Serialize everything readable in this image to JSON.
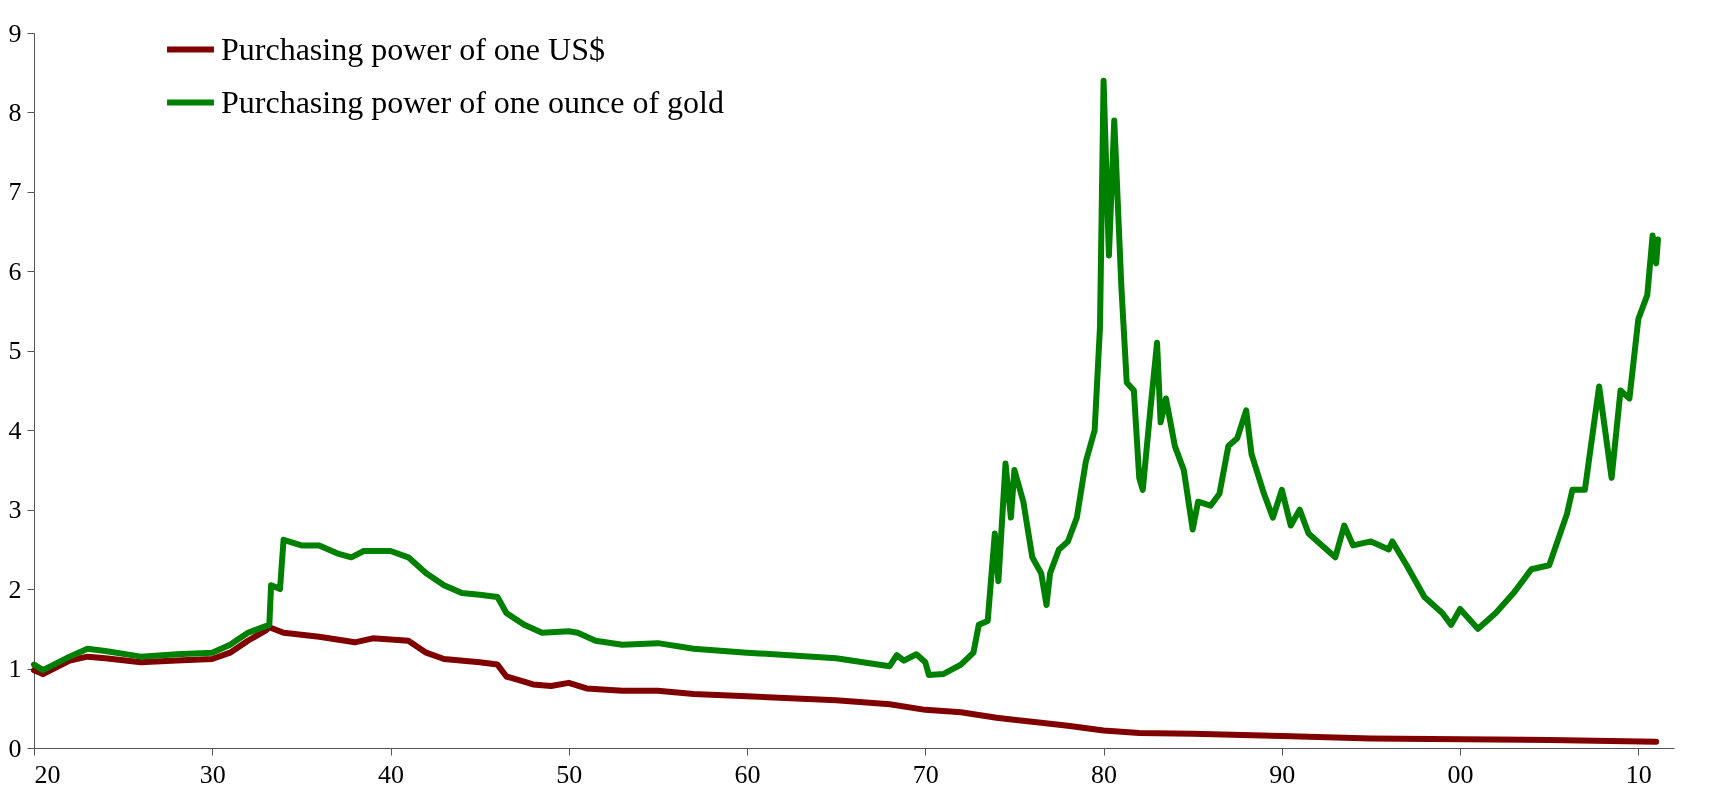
{
  "chart_data": {
    "type": "line",
    "legend": "top left",
    "grid": false,
    "marker": "none",
    "line_style": "solid",
    "xlim": [
      1920,
      2012
    ],
    "xticks": [
      {
        "value": 1920,
        "label": "20"
      },
      {
        "value": 1930,
        "label": "30"
      },
      {
        "value": 1940,
        "label": "40"
      },
      {
        "value": 1950,
        "label": "50"
      },
      {
        "value": 1960,
        "label": "60"
      },
      {
        "value": 1970,
        "label": "70"
      },
      {
        "value": 1980,
        "label": "80"
      },
      {
        "value": 1990,
        "label": "90"
      },
      {
        "value": 2000,
        "label": "00"
      },
      {
        "value": 2010,
        "label": "10"
      }
    ],
    "ylim": [
      0,
      9
    ],
    "yticks": [
      0,
      1,
      2,
      3,
      4,
      5,
      6,
      7,
      8,
      9
    ],
    "series": [
      {
        "name": "Purchasing power of one US$",
        "color": "#800000",
        "x": [
          1920,
          1920.5,
          1922,
          1923,
          1924,
          1926,
          1928,
          1930,
          1931,
          1932,
          1933,
          1933.2,
          1934,
          1936,
          1938,
          1939,
          1941,
          1942,
          1943,
          1945,
          1946,
          1946.5,
          1948,
          1949,
          1950,
          1951,
          1953,
          1955,
          1957,
          1960,
          1965,
          1968,
          1970,
          1972,
          1974,
          1976,
          1978,
          1980,
          1982,
          1985,
          1990,
          1995,
          2000,
          2005,
          2011
        ],
        "values": [
          0.98,
          0.93,
          1.1,
          1.15,
          1.13,
          1.08,
          1.1,
          1.12,
          1.2,
          1.35,
          1.48,
          1.52,
          1.45,
          1.4,
          1.33,
          1.38,
          1.35,
          1.2,
          1.12,
          1.08,
          1.05,
          0.9,
          0.8,
          0.78,
          0.82,
          0.75,
          0.72,
          0.72,
          0.68,
          0.65,
          0.6,
          0.55,
          0.48,
          0.45,
          0.38,
          0.33,
          0.28,
          0.22,
          0.19,
          0.18,
          0.15,
          0.12,
          0.11,
          0.1,
          0.08
        ]
      },
      {
        "name": "Purchasing power of one ounce of gold",
        "color": "#008000",
        "x": [
          1920,
          1920.5,
          1922,
          1923,
          1924,
          1926,
          1928,
          1930,
          1931,
          1932,
          1933.2,
          1933.3,
          1933.8,
          1934,
          1935,
          1936,
          1937,
          1937.8,
          1938.5,
          1940,
          1941,
          1942,
          1943,
          1944,
          1945,
          1946,
          1946.5,
          1947.5,
          1948.5,
          1950,
          1950.5,
          1951.5,
          1953,
          1955,
          1957,
          1960,
          1965,
          1968,
          1968.4,
          1968.8,
          1969.5,
          1970,
          1970.2,
          1971,
          1972,
          1972.7,
          1973,
          1973.5,
          1973.9,
          1974.1,
          1974.5,
          1974.8,
          1975,
          1975.5,
          1976,
          1976.5,
          1976.8,
          1977,
          1977.5,
          1978,
          1978.5,
          1979,
          1979.5,
          1979.8,
          1980,
          1980.3,
          1980.6,
          1981,
          1981.3,
          1981.7,
          1982,
          1982.2,
          1982.6,
          1983,
          1983.2,
          1983.5,
          1984,
          1984.5,
          1985,
          1985.3,
          1986,
          1986.5,
          1987,
          1987.5,
          1988,
          1988.3,
          1989,
          1989.5,
          1990,
          1990.5,
          1991,
          1991.5,
          1992,
          1993,
          1993.5,
          1994,
          1995,
          1996,
          1996.2,
          1997,
          1998,
          1999,
          1999.5,
          2000,
          2001,
          2001.5,
          2002,
          2003,
          2004,
          2005,
          2006,
          2006.3,
          2007,
          2007.8,
          2008.5,
          2009,
          2009.5,
          2010,
          2010.5,
          2010.8,
          2011,
          2011.1
        ],
        "values": [
          1.05,
          0.98,
          1.15,
          1.25,
          1.22,
          1.15,
          1.18,
          1.2,
          1.3,
          1.45,
          1.55,
          2.05,
          2.0,
          2.62,
          2.55,
          2.55,
          2.45,
          2.4,
          2.48,
          2.48,
          2.4,
          2.2,
          2.05,
          1.95,
          1.93,
          1.9,
          1.7,
          1.55,
          1.45,
          1.47,
          1.45,
          1.35,
          1.3,
          1.32,
          1.25,
          1.2,
          1.13,
          1.03,
          1.17,
          1.1,
          1.18,
          1.08,
          0.92,
          0.93,
          1.05,
          1.2,
          1.55,
          1.6,
          2.7,
          2.1,
          3.58,
          2.9,
          3.5,
          3.1,
          2.4,
          2.2,
          1.8,
          2.2,
          2.5,
          2.6,
          2.9,
          3.6,
          4.0,
          5.3,
          8.4,
          6.2,
          7.9,
          5.8,
          4.6,
          4.5,
          3.4,
          3.25,
          4.2,
          5.1,
          4.1,
          4.4,
          3.8,
          3.5,
          2.75,
          3.1,
          3.05,
          3.2,
          3.8,
          3.9,
          4.25,
          3.7,
          3.2,
          2.9,
          3.25,
          2.8,
          3.0,
          2.7,
          2.6,
          2.4,
          2.8,
          2.55,
          2.6,
          2.5,
          2.6,
          2.3,
          1.9,
          1.7,
          1.55,
          1.75,
          1.5,
          1.6,
          1.7,
          1.95,
          2.25,
          2.3,
          2.95,
          3.25,
          3.25,
          4.55,
          3.4,
          4.5,
          4.4,
          5.4,
          5.7,
          6.45,
          6.1,
          6.4
        ]
      }
    ]
  }
}
